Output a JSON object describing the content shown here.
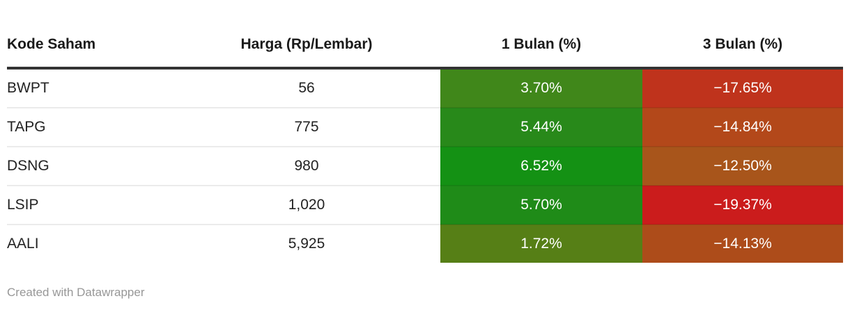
{
  "chart_data": {
    "type": "table",
    "title": "",
    "columns": [
      "Kode Saham",
      "Harga (Rp/Lembar)",
      "1 Bulan (%)",
      "3 Bulan (%)"
    ],
    "rows": [
      [
        "BWPT",
        56,
        3.7,
        -17.65
      ],
      [
        "TAPG",
        775,
        5.44,
        -14.84
      ],
      [
        "DSNG",
        980,
        6.52,
        -12.5
      ],
      [
        "LSIP",
        1020,
        5.7,
        -19.37
      ],
      [
        "AALI",
        5925,
        1.72,
        -14.13
      ]
    ],
    "heatmap_columns": [
      "1 Bulan (%)",
      "3 Bulan (%)"
    ],
    "heatmap_palette": "green = positive, red/orange = negative",
    "grid": "horizontal row dividers only",
    "legend": "none"
  },
  "table": {
    "columns": [
      {
        "label": "Kode Saham"
      },
      {
        "label": "Harga (Rp/Lembar)"
      },
      {
        "label": "1 Bulan (%)"
      },
      {
        "label": "3 Bulan (%)"
      }
    ],
    "rows": [
      {
        "kode": "BWPT",
        "harga": "56",
        "bulan1": {
          "text": "3.70%",
          "bg": "#40871a"
        },
        "bulan3": {
          "text": "−17.65%",
          "bg": "#bf331c"
        }
      },
      {
        "kode": "TAPG",
        "harga": "775",
        "bulan1": {
          "text": "5.44%",
          "bg": "#28891a"
        },
        "bulan3": {
          "text": "−14.84%",
          "bg": "#b3481a"
        }
      },
      {
        "kode": "DSNG",
        "harga": "980",
        "bulan1": {
          "text": "6.52%",
          "bg": "#149114"
        },
        "bulan3": {
          "text": "−12.50%",
          "bg": "#a8551b"
        }
      },
      {
        "kode": "LSIP",
        "harga": "1,020",
        "bulan1": {
          "text": "5.70%",
          "bg": "#1f8b18"
        },
        "bulan3": {
          "text": "−19.37%",
          "bg": "#cb1c1c"
        }
      },
      {
        "kode": "AALI",
        "harga": "5,925",
        "bulan1": {
          "text": "1.72%",
          "bg": "#567f16"
        },
        "bulan3": {
          "text": "−14.13%",
          "bg": "#ad4c1a"
        }
      }
    ]
  },
  "colors": {
    "header_rule": "#333333",
    "body_text": "#222222",
    "cell_text_light": "#ffffff",
    "footer_text": "#979797"
  },
  "footer": {
    "attribution": "Created with Datawrapper"
  }
}
